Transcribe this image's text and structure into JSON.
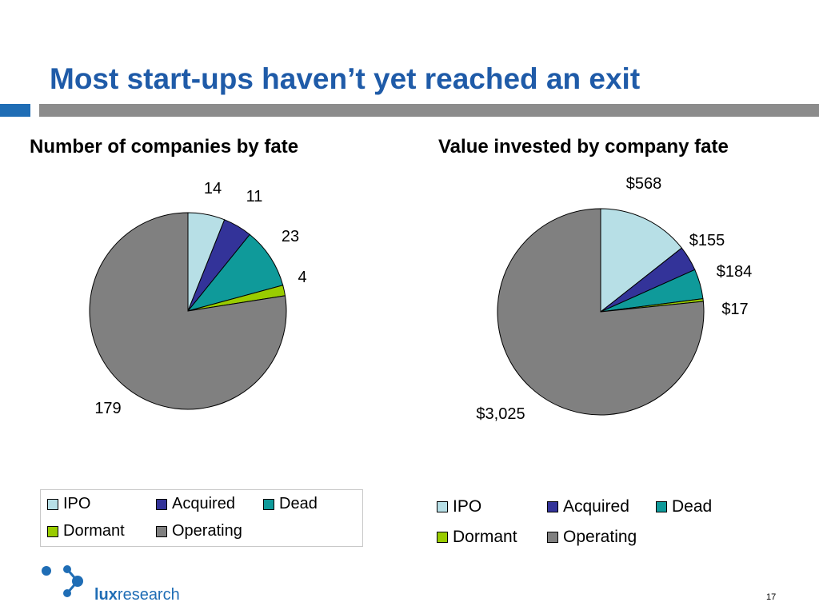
{
  "slide": {
    "title": "Most start-ups haven’t yet reached an exit",
    "page_number": "17",
    "logo": {
      "bold": "lux",
      "rest": "research"
    },
    "colors": {
      "title": "#1f5ba8",
      "accent_bar": "#1f6db5",
      "rule": "#8c8c8c"
    }
  },
  "chart_data": [
    {
      "type": "pie",
      "title": "Number of companies by fate",
      "start": "12 o'clock",
      "direction": "clockwise",
      "slices": [
        {
          "label": "IPO",
          "value": 14,
          "display": "14",
          "color": "#b7dfe6"
        },
        {
          "label": "Acquired",
          "value": 11,
          "display": "11",
          "color": "#333399"
        },
        {
          "label": "Dead",
          "value": 23,
          "display": "23",
          "color": "#0f9a9a"
        },
        {
          "label": "Dormant",
          "value": 4,
          "display": "4",
          "color": "#99cc00"
        },
        {
          "label": "Operating",
          "value": 179,
          "display": "179",
          "color": "#808080"
        }
      ],
      "legend": {
        "placement": "bottom",
        "boxed": true
      }
    },
    {
      "type": "pie",
      "title": "Value invested by company fate",
      "start": "12 o'clock",
      "direction": "clockwise",
      "slices": [
        {
          "label": "IPO",
          "value": 568,
          "display": "$568",
          "color": "#b7dfe6"
        },
        {
          "label": "Acquired",
          "value": 155,
          "display": "$155",
          "color": "#333399"
        },
        {
          "label": "Dead",
          "value": 184,
          "display": "$184",
          "color": "#0f9a9a"
        },
        {
          "label": "Dormant",
          "value": 17,
          "display": "$17",
          "color": "#99cc00"
        },
        {
          "label": "Operating",
          "value": 3025,
          "display": "$3,025",
          "color": "#808080"
        }
      ],
      "legend": {
        "placement": "bottom",
        "boxed": false
      }
    }
  ]
}
